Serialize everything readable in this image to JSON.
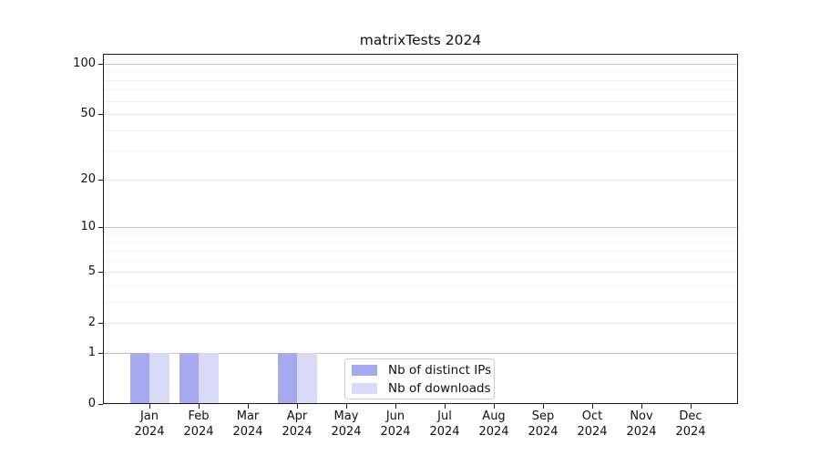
{
  "chart_data": {
    "type": "bar",
    "title": "matrixTests 2024",
    "categories": [
      "Jan",
      "Feb",
      "Mar",
      "Apr",
      "May",
      "Jun",
      "Jul",
      "Aug",
      "Sep",
      "Oct",
      "Nov",
      "Dec"
    ],
    "category_year": "2024",
    "series": [
      {
        "name": "Nb of distinct IPs",
        "color": "#a8a8f0",
        "values": [
          1,
          1,
          0,
          1,
          0,
          0,
          0,
          0,
          0,
          0,
          0,
          0
        ]
      },
      {
        "name": "Nb of downloads",
        "color": "#d9d9f8",
        "values": [
          1,
          1,
          0,
          1,
          0,
          0,
          0,
          0,
          0,
          0,
          0,
          0
        ]
      }
    ],
    "xlabel": "",
    "ylabel": "",
    "yscale": "log1p",
    "ylim": [
      0,
      115
    ],
    "yticks": [
      0,
      1,
      2,
      5,
      10,
      20,
      50,
      100
    ],
    "minor_yticks": [
      3,
      4,
      6,
      7,
      8,
      9,
      30,
      40,
      60,
      70,
      80,
      90
    ],
    "grid": "horizontal",
    "legend_position": "lower-center-inside"
  },
  "legend": {
    "items": [
      {
        "label": "Nb of distinct IPs",
        "swatch": "#a8a8f0"
      },
      {
        "label": "Nb of downloads",
        "swatch": "#d9d9f8"
      }
    ]
  },
  "colors": {
    "background": "#ffffff",
    "spine": "#1a1a1a",
    "text": "#111111",
    "grid_decade": "#c0c0c0",
    "grid_major": "#e8e8e8",
    "grid_minor": "#f2f2f2",
    "legend_border": "#cccccc",
    "bar_distinct_ips": "#a8a8f0",
    "bar_downloads": "#d9d9f8"
  }
}
